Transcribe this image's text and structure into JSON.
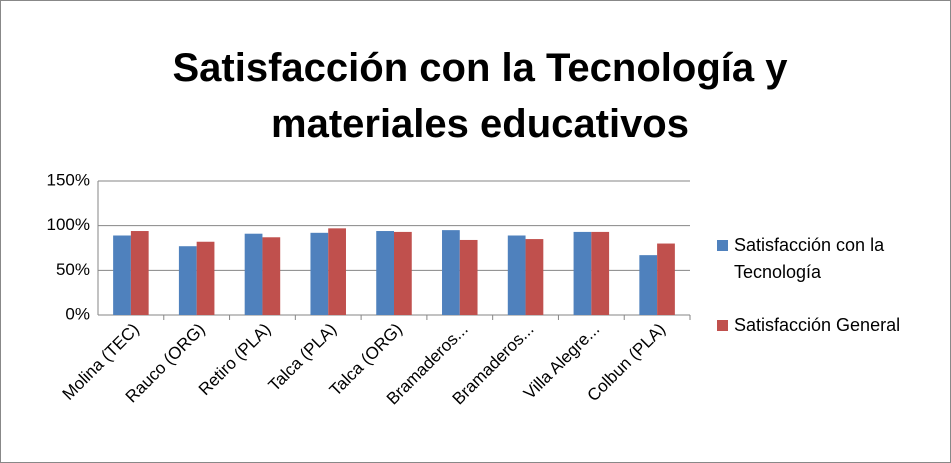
{
  "chart_data": {
    "type": "bar",
    "title": "Satisfacción con la Tecnología y materiales educativos",
    "categories": [
      "Molina (TEC)",
      "Rauco (ORG)",
      "Retiro (PLA)",
      "Talca (PLA)",
      "Talca (ORG)",
      "Bramaderos...",
      "Bramaderos...",
      "Villa Alegre...",
      "Colbun (PLA)"
    ],
    "series": [
      {
        "name": "Satisfacción con la Tecnología",
        "color": "#4f81bd",
        "values": [
          89,
          77,
          91,
          92,
          94,
          95,
          89,
          93,
          67
        ]
      },
      {
        "name": "Satisfacción General",
        "color": "#c0504d",
        "values": [
          94,
          82,
          87,
          97,
          93,
          84,
          85,
          93,
          80
        ]
      }
    ],
    "ylim": [
      0,
      150
    ],
    "yticks": [
      {
        "value": 0,
        "label": "0%"
      },
      {
        "value": 50,
        "label": "50%"
      },
      {
        "value": 100,
        "label": "100%"
      },
      {
        "value": 150,
        "label": "150%"
      }
    ],
    "grid": true,
    "legend": "right"
  }
}
